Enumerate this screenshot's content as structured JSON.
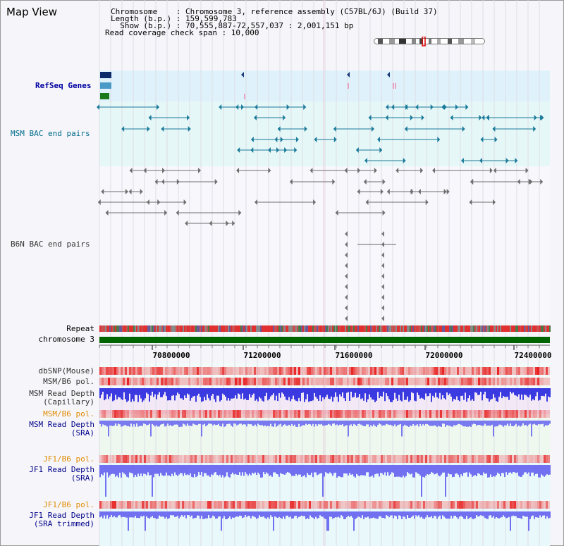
{
  "view": {
    "title": "Map View"
  },
  "info": {
    "chromosome": "Chromosome    : Chromosome 3, reference assembly (C57BL/6J) (Build 37)",
    "length": "Length (b.p.) : 159,599,783",
    "show": "  Show (b.p.) : 70,555,887-72,557,037 : 2,001,151 bp",
    "read_span": "Read coverage check span : 10,000"
  },
  "tracks": {
    "refseq": "RefSeq Genes",
    "msm_bac": "MSM BAC end pairs",
    "b6n_bac": "B6N BAC end pairs",
    "repeat": "Repeat",
    "chromosome": "chromosome 3"
  },
  "axis": {
    "ticks": [
      "70800000",
      "71200000",
      "71600000",
      "72000000",
      "72400000"
    ]
  },
  "bottom_tracks": {
    "dbsnp": "dbSNP(Mouse)",
    "msm_b6_pol_1": "MSM/B6 pol.",
    "msm_depth_cap_1": "MSM Read Depth",
    "msm_depth_cap_2": "(Capillary)",
    "msm_b6_pol_2": "MSM/B6 pol.",
    "msm_depth_sra_1": "MSM Read Depth",
    "msm_depth_sra_2": "(SRA)",
    "jf1_b6_pol_1": "JF1/B6 pol.",
    "jf1_depth_1": "JF1 Read Depth",
    "jf1_depth_2": "(SRA)",
    "jf1_b6_pol_2": "JF1/B6 pol.",
    "jf1_trim_1": "JF1 Read Depth",
    "jf1_trim_2": "(SRA trimmed)"
  },
  "colors": {
    "msm_label": "#006a8a",
    "refseq_label": "#0000a0",
    "b6n_label": "#333333",
    "pol_label": "#e08a00",
    "depth_label": "#00008a",
    "chromosome_bar": "#006400",
    "grid": "#c8c8c8"
  }
}
